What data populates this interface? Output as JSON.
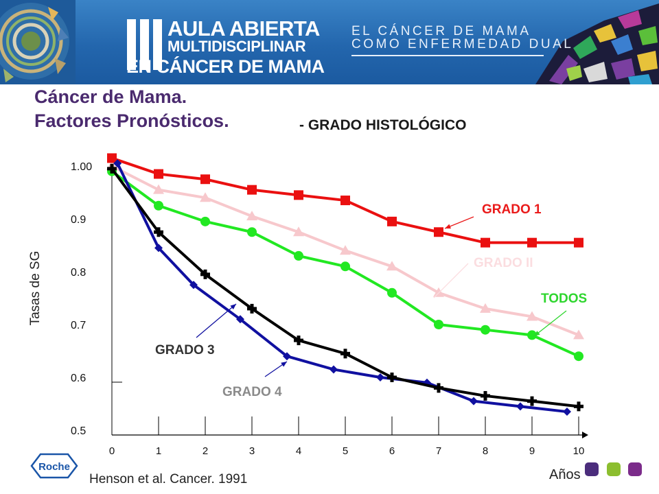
{
  "header": {
    "logo_numeral": "III",
    "logo_line1": "AULA ABIERTA",
    "logo_line2": "MULTIDISCIPLINAR",
    "logo_line3": "EN CÁNCER DE MAMA",
    "tagline_line1": "EL CÁNCER DE MAMA",
    "tagline_line2": "COMO ENFERMEDAD DUAL"
  },
  "page": {
    "title_line1": "Cáncer de Mama.",
    "title_line2": "Factores Pronósticos.",
    "subtitle": "- GRADO HISTOLÓGICO",
    "source": "Henson et al. Cancer. 1991",
    "brand": "Roche"
  },
  "colors": {
    "title": "#4a2a6e",
    "banner": "#2366ad",
    "square_1": "#4b2d7c",
    "square_2": "#8cbe2f",
    "square_3": "#7b2b8a"
  },
  "chart_data": {
    "type": "line",
    "title": "- GRADO HISTOLÓGICO",
    "xlabel": "Años",
    "ylabel": "Tasas de SG",
    "x": [
      0,
      1,
      2,
      3,
      4,
      5,
      6,
      7,
      8,
      9,
      10
    ],
    "x_ticks": [
      "0",
      "1",
      "2",
      "3",
      "4",
      "5",
      "6",
      "7",
      "8",
      "9",
      "10"
    ],
    "y_ticks": [
      "1.00",
      "0.9",
      "0.8",
      "0.7",
      "0.6",
      "0.5"
    ],
    "y_tick_values": [
      1.0,
      0.9,
      0.8,
      0.7,
      0.6,
      0.5
    ],
    "xlim": [
      0,
      10
    ],
    "ylim": [
      0.5,
      1.0
    ],
    "grid": false,
    "series": [
      {
        "name": "GRADO II",
        "color": "#f7c8cc",
        "marker": "triangle",
        "labelColor": "#fbdde0",
        "x": [
          0,
          1,
          2,
          3,
          4,
          5,
          6,
          7,
          8,
          9,
          10
        ],
        "values": [
          1.0,
          0.955,
          0.94,
          0.905,
          0.875,
          0.84,
          0.81,
          0.76,
          0.73,
          0.715,
          0.68
        ]
      },
      {
        "name": "TODOS",
        "color": "#22e822",
        "marker": "circle",
        "labelColor": "#2ed62e",
        "x": [
          0,
          1,
          2,
          3,
          4,
          5,
          6,
          7,
          8,
          9,
          10
        ],
        "values": [
          0.99,
          0.925,
          0.895,
          0.875,
          0.83,
          0.81,
          0.76,
          0.7,
          0.69,
          0.68,
          0.64
        ]
      },
      {
        "name": "GRADO 1",
        "color": "#ea1010",
        "marker": "square",
        "labelColor": "#ea1a1a",
        "x": [
          0,
          1,
          2,
          3,
          4,
          5,
          6,
          7,
          8,
          9,
          10
        ],
        "values": [
          1.015,
          0.985,
          0.975,
          0.955,
          0.945,
          0.935,
          0.895,
          0.875,
          0.855,
          0.855,
          0.855
        ]
      },
      {
        "name": "GRADO 4",
        "color": "#1010a0",
        "marker": "diamond",
        "labelColor": "#8a8a8a",
        "x": [
          0.12,
          1,
          1.75,
          2.75,
          3.75,
          4.75,
          5.75,
          6.75,
          7.75,
          8.75,
          9.75
        ],
        "values": [
          1.005,
          0.845,
          0.775,
          0.71,
          0.64,
          0.615,
          0.6,
          0.59,
          0.555,
          0.545,
          0.535
        ]
      },
      {
        "name": "GRADO 3",
        "color": "#000000",
        "marker": "cross",
        "labelColor": "#333333",
        "x": [
          0,
          1,
          2,
          3,
          4,
          5,
          6,
          7,
          8,
          9,
          10
        ],
        "values": [
          0.995,
          0.875,
          0.795,
          0.73,
          0.67,
          0.645,
          0.6,
          0.58,
          0.565,
          0.555,
          0.545
        ]
      }
    ]
  }
}
